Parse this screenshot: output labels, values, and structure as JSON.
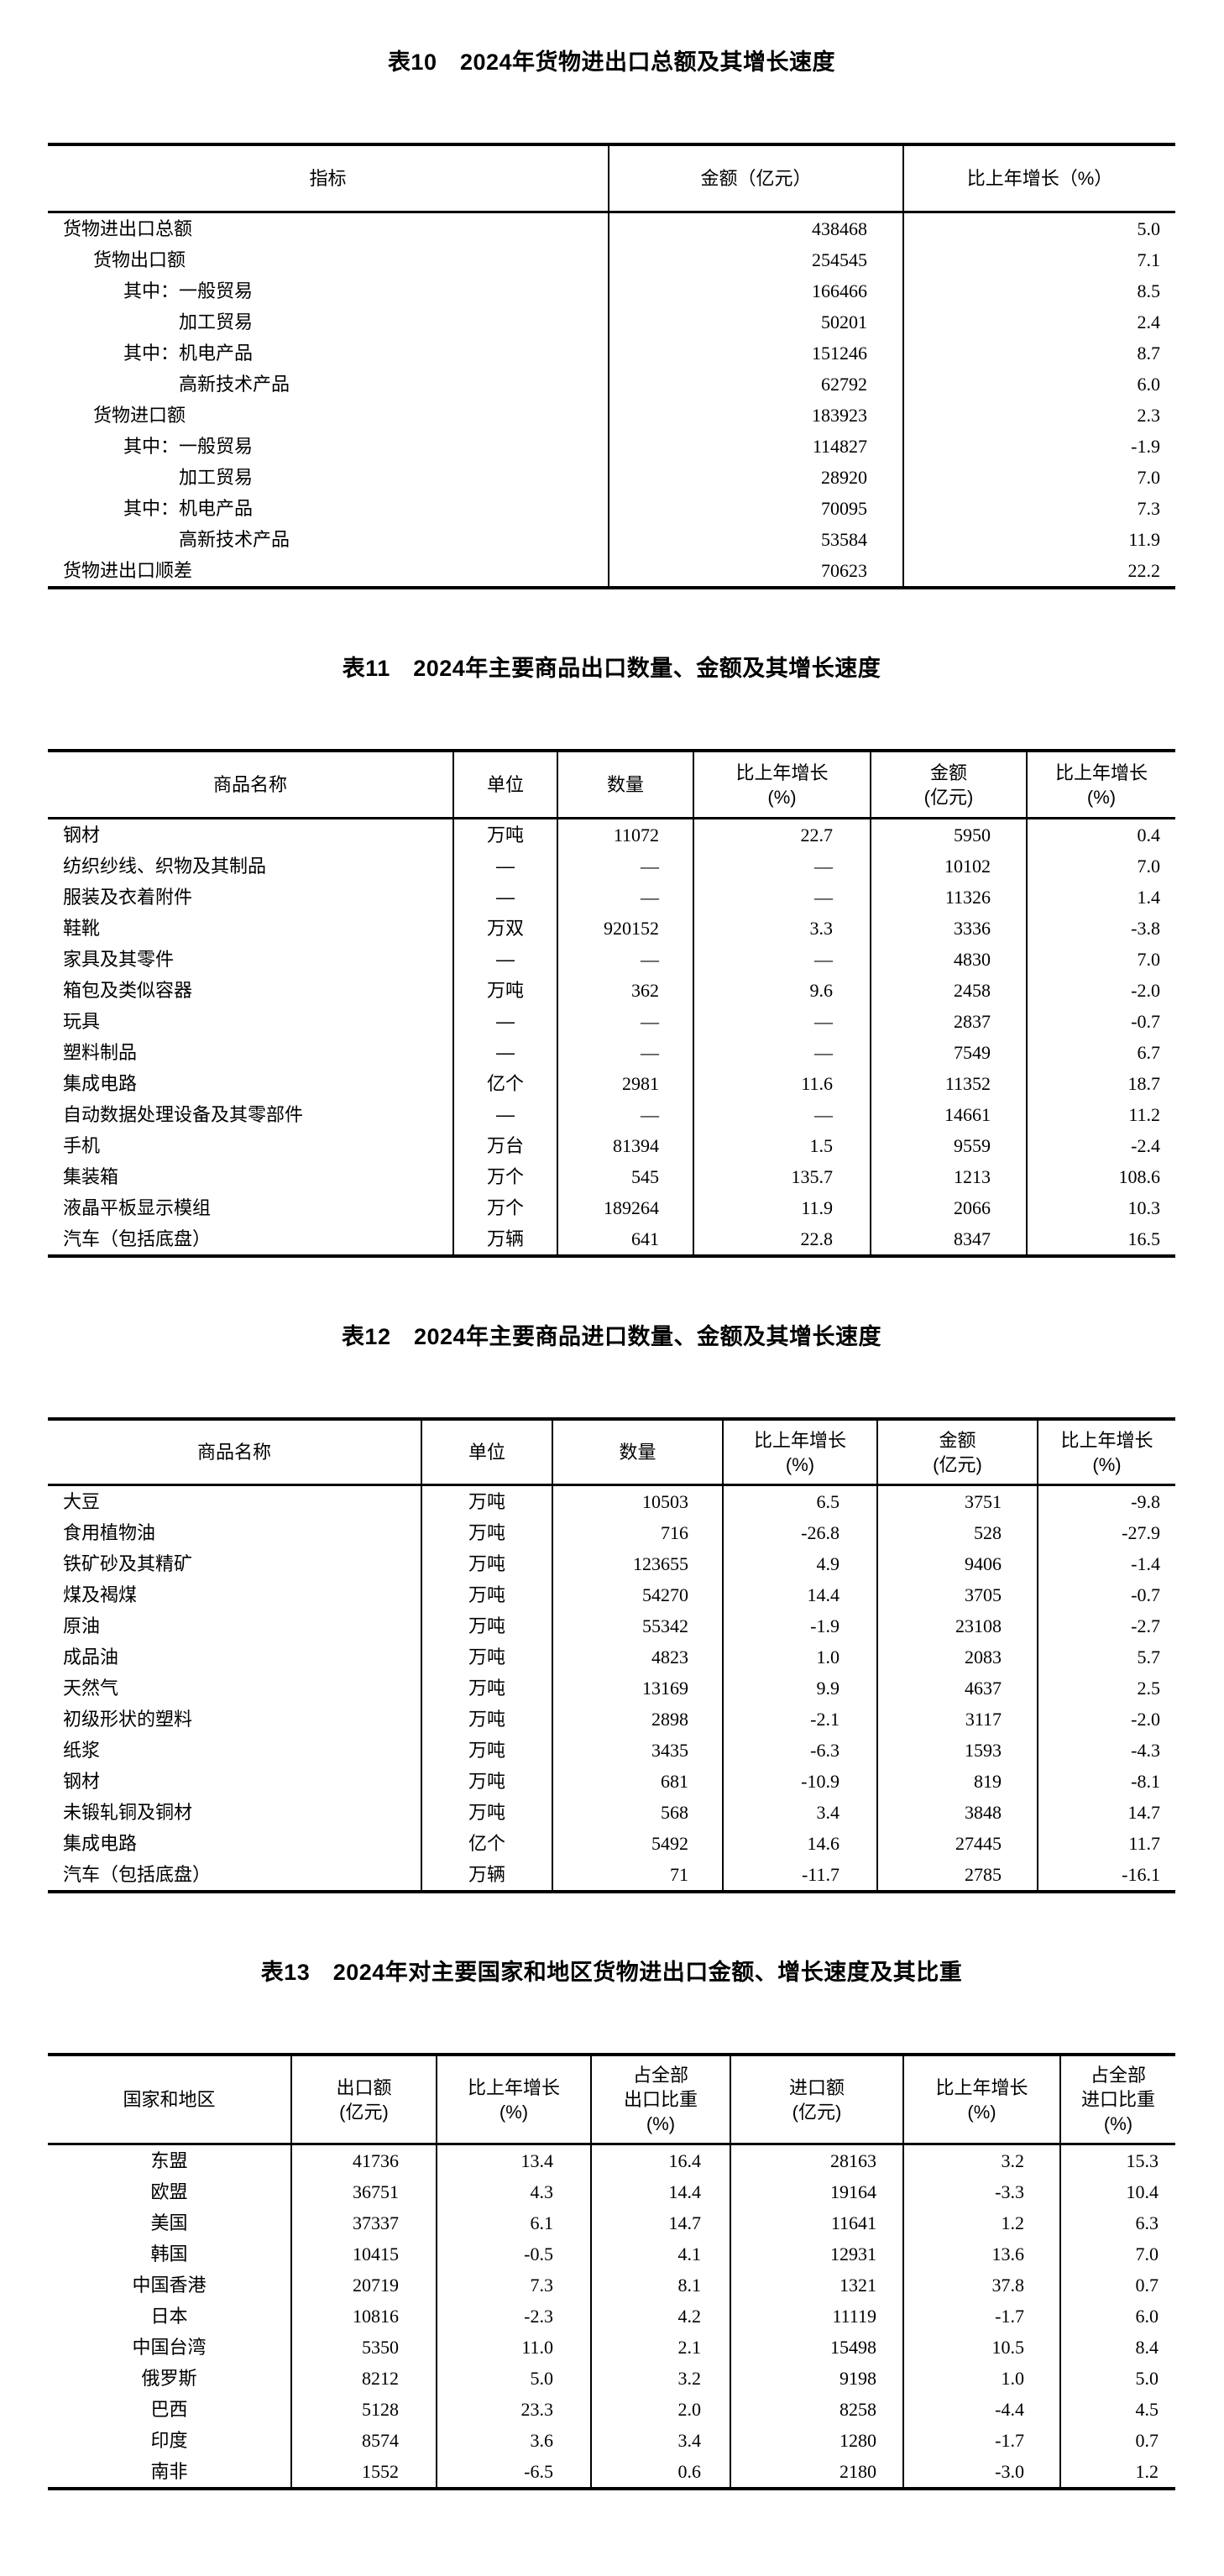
{
  "tables": [
    {
      "title": "表10　2024年货物进出口总额及其增长速度",
      "headers": [
        "指标",
        "金额（亿元）",
        "比上年增长（%）"
      ],
      "rows": [
        {
          "indent": 0,
          "cells": [
            "货物进出口总额",
            "438468",
            "5.0"
          ]
        },
        {
          "indent": 1,
          "cells": [
            "货物出口额",
            "254545",
            "7.1"
          ]
        },
        {
          "indent": 2,
          "cells": [
            "其中：一般贸易",
            "166466",
            "8.5"
          ]
        },
        {
          "indent": 3,
          "cells": [
            "加工贸易",
            "50201",
            "2.4"
          ]
        },
        {
          "indent": 2,
          "cells": [
            "其中：机电产品",
            "151246",
            "8.7"
          ]
        },
        {
          "indent": 3,
          "cells": [
            "高新技术产品",
            "62792",
            "6.0"
          ]
        },
        {
          "indent": 1,
          "cells": [
            "货物进口额",
            "183923",
            "2.3"
          ]
        },
        {
          "indent": 2,
          "cells": [
            "其中：一般贸易",
            "114827",
            "-1.9"
          ]
        },
        {
          "indent": 3,
          "cells": [
            "加工贸易",
            "28920",
            "7.0"
          ]
        },
        {
          "indent": 2,
          "cells": [
            "其中：机电产品",
            "70095",
            "7.3"
          ]
        },
        {
          "indent": 3,
          "cells": [
            "高新技术产品",
            "53584",
            "11.9"
          ]
        },
        {
          "indent": 0,
          "cells": [
            "货物进出口顺差",
            "70623",
            "22.2"
          ]
        }
      ]
    },
    {
      "title": "表11　2024年主要商品出口数量、金额及其增长速度",
      "headers": [
        "商品名称",
        "单位",
        "数量",
        "比上年增长\n(%)",
        "金额\n(亿元)",
        "比上年增长\n(%)"
      ],
      "rows": [
        [
          "钢材",
          "万吨",
          "11072",
          "22.7",
          "5950",
          "0.4"
        ],
        [
          "纺织纱线、织物及其制品",
          "—",
          "—",
          "—",
          "10102",
          "7.0"
        ],
        [
          "服装及衣着附件",
          "—",
          "—",
          "—",
          "11326",
          "1.4"
        ],
        [
          "鞋靴",
          "万双",
          "920152",
          "3.3",
          "3336",
          "-3.8"
        ],
        [
          "家具及其零件",
          "—",
          "—",
          "—",
          "4830",
          "7.0"
        ],
        [
          "箱包及类似容器",
          "万吨",
          "362",
          "9.6",
          "2458",
          "-2.0"
        ],
        [
          "玩具",
          "—",
          "—",
          "—",
          "2837",
          "-0.7"
        ],
        [
          "塑料制品",
          "—",
          "—",
          "—",
          "7549",
          "6.7"
        ],
        [
          "集成电路",
          "亿个",
          "2981",
          "11.6",
          "11352",
          "18.7"
        ],
        [
          "自动数据处理设备及其零部件",
          "—",
          "—",
          "—",
          "14661",
          "11.2"
        ],
        [
          "手机",
          "万台",
          "81394",
          "1.5",
          "9559",
          "-2.4"
        ],
        [
          "集装箱",
          "万个",
          "545",
          "135.7",
          "1213",
          "108.6"
        ],
        [
          "液晶平板显示模组",
          "万个",
          "189264",
          "11.9",
          "2066",
          "10.3"
        ],
        [
          "汽车（包括底盘）",
          "万辆",
          "641",
          "22.8",
          "8347",
          "16.5"
        ]
      ]
    },
    {
      "title": "表12　2024年主要商品进口数量、金额及其增长速度",
      "headers": [
        "商品名称",
        "单位",
        "数量",
        "比上年增长\n(%)",
        "金额\n(亿元)",
        "比上年增长\n(%)"
      ],
      "rows": [
        [
          "大豆",
          "万吨",
          "10503",
          "6.5",
          "3751",
          "-9.8"
        ],
        [
          "食用植物油",
          "万吨",
          "716",
          "-26.8",
          "528",
          "-27.9"
        ],
        [
          "铁矿砂及其精矿",
          "万吨",
          "123655",
          "4.9",
          "9406",
          "-1.4"
        ],
        [
          "煤及褐煤",
          "万吨",
          "54270",
          "14.4",
          "3705",
          "-0.7"
        ],
        [
          "原油",
          "万吨",
          "55342",
          "-1.9",
          "23108",
          "-2.7"
        ],
        [
          "成品油",
          "万吨",
          "4823",
          "1.0",
          "2083",
          "5.7"
        ],
        [
          "天然气",
          "万吨",
          "13169",
          "9.9",
          "4637",
          "2.5"
        ],
        [
          "初级形状的塑料",
          "万吨",
          "2898",
          "-2.1",
          "3117",
          "-2.0"
        ],
        [
          "纸浆",
          "万吨",
          "3435",
          "-6.3",
          "1593",
          "-4.3"
        ],
        [
          "钢材",
          "万吨",
          "681",
          "-10.9",
          "819",
          "-8.1"
        ],
        [
          "未锻轧铜及铜材",
          "万吨",
          "568",
          "3.4",
          "3848",
          "14.7"
        ],
        [
          "集成电路",
          "亿个",
          "5492",
          "14.6",
          "27445",
          "11.7"
        ],
        [
          "汽车（包括底盘）",
          "万辆",
          "71",
          "-11.7",
          "2785",
          "-16.1"
        ]
      ]
    },
    {
      "title": "表13　2024年对主要国家和地区货物进出口金额、增长速度及其比重",
      "headers": [
        "国家和地区",
        "出口额\n(亿元)",
        "比上年增长\n(%)",
        "占全部\n出口比重\n(%)",
        "进口额\n(亿元)",
        "比上年增长\n(%)",
        "占全部\n进口比重\n(%)"
      ],
      "rows": [
        [
          "东盟",
          "41736",
          "13.4",
          "16.4",
          "28163",
          "3.2",
          "15.3"
        ],
        [
          "欧盟",
          "36751",
          "4.3",
          "14.4",
          "19164",
          "-3.3",
          "10.4"
        ],
        [
          "美国",
          "37337",
          "6.1",
          "14.7",
          "11641",
          "1.2",
          "6.3"
        ],
        [
          "韩国",
          "10415",
          "-0.5",
          "4.1",
          "12931",
          "13.6",
          "7.0"
        ],
        [
          "中国香港",
          "20719",
          "7.3",
          "8.1",
          "1321",
          "37.8",
          "0.7"
        ],
        [
          "日本",
          "10816",
          "-2.3",
          "4.2",
          "11119",
          "-1.7",
          "6.0"
        ],
        [
          "中国台湾",
          "5350",
          "11.0",
          "2.1",
          "15498",
          "10.5",
          "8.4"
        ],
        [
          "俄罗斯",
          "8212",
          "5.0",
          "3.2",
          "9198",
          "1.0",
          "5.0"
        ],
        [
          "巴西",
          "5128",
          "23.3",
          "2.0",
          "8258",
          "-4.4",
          "4.5"
        ],
        [
          "印度",
          "8574",
          "3.6",
          "3.4",
          "1280",
          "-1.7",
          "0.7"
        ],
        [
          "南非",
          "1552",
          "-6.5",
          "0.6",
          "2180",
          "-3.0",
          "1.2"
        ]
      ]
    }
  ]
}
